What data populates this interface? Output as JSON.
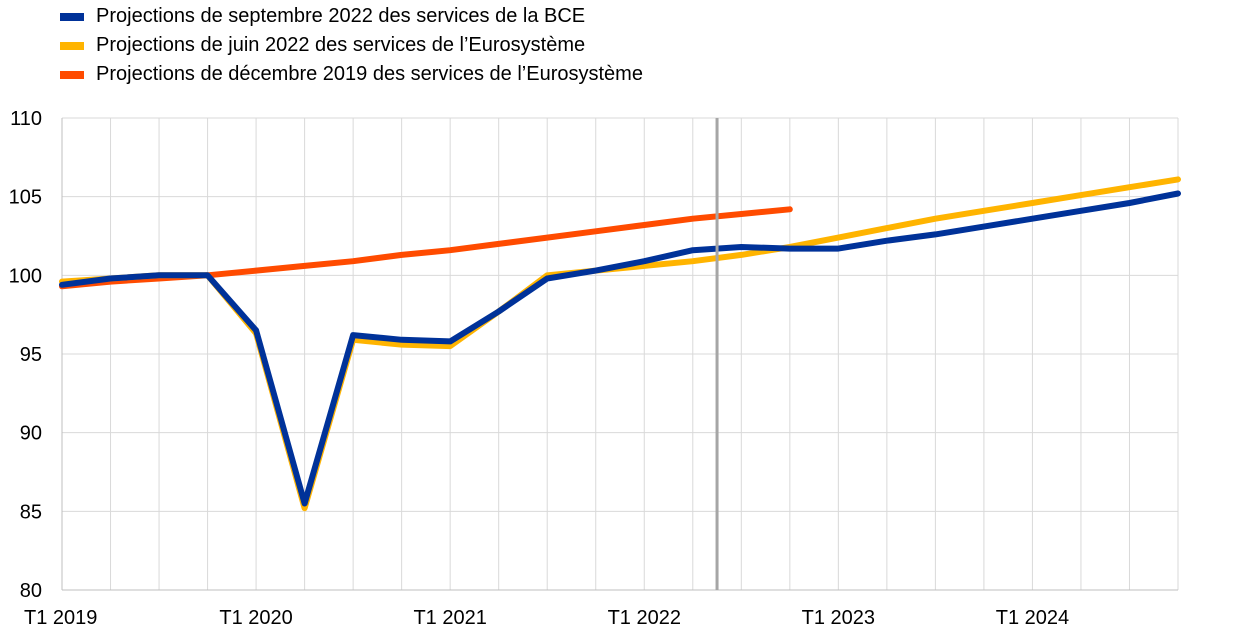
{
  "chart_data": {
    "type": "line",
    "title": "",
    "xlabel": "",
    "ylabel": "",
    "ylim": [
      80,
      110
    ],
    "yticks": [
      80,
      85,
      90,
      95,
      100,
      105,
      110
    ],
    "xlim": [
      0,
      23
    ],
    "xtick_labels": [
      {
        "i": 0,
        "label": "T1 2019"
      },
      {
        "i": 4,
        "label": "T1 2020"
      },
      {
        "i": 8,
        "label": "T1 2021"
      },
      {
        "i": 12,
        "label": "T1 2022"
      },
      {
        "i": 16,
        "label": "T1 2023"
      },
      {
        "i": 20,
        "label": "T1 2024"
      }
    ],
    "categories": [
      "T1 2019",
      "T2 2019",
      "T3 2019",
      "T4 2019",
      "T1 2020",
      "T2 2020",
      "T3 2020",
      "T4 2020",
      "T1 2021",
      "T2 2021",
      "T3 2021",
      "T4 2021",
      "T1 2022",
      "T2 2022",
      "T3 2022",
      "T4 2022",
      "T1 2023",
      "T2 2023",
      "T3 2023",
      "T4 2023",
      "T1 2024",
      "T2 2024",
      "T3 2024",
      "T4 2024"
    ],
    "vertical_line_at": 13.5,
    "vertical_line_color": "#a6a6a6",
    "grid": true,
    "legend_position": "top-left",
    "series": [
      {
        "name": "Projections de décembre 2019 des services de l’Eurosystème",
        "color": "#ff4b00",
        "x": [
          0,
          1,
          2,
          3,
          4,
          5,
          6,
          7,
          8,
          9,
          10,
          11,
          12,
          13,
          14,
          15
        ],
        "values": [
          99.3,
          99.6,
          99.8,
          100.0,
          100.3,
          100.6,
          100.9,
          101.3,
          101.6,
          102.0,
          102.4,
          102.8,
          103.2,
          103.6,
          103.9,
          104.2
        ]
      },
      {
        "name": "Projections de juin 2022 des services de l’Eurosystème",
        "color": "#ffb400",
        "x": [
          0,
          1,
          2,
          3,
          4,
          5,
          6,
          7,
          8,
          9,
          10,
          11,
          12,
          13,
          14,
          15,
          16,
          17,
          18,
          19,
          20,
          21,
          22,
          23
        ],
        "values": [
          99.6,
          99.8,
          100.0,
          100.0,
          96.3,
          85.2,
          95.9,
          95.6,
          95.5,
          97.7,
          100.0,
          100.3,
          100.6,
          100.9,
          101.3,
          101.8,
          102.4,
          103.0,
          103.6,
          104.1,
          104.6,
          105.1,
          105.6,
          106.1
        ]
      },
      {
        "name": "Projections de septembre 2022 des services de la BCE",
        "color": "#003299",
        "x": [
          0,
          1,
          2,
          3,
          4,
          5,
          6,
          7,
          8,
          9,
          10,
          11,
          12,
          13,
          14,
          15,
          16,
          17,
          18,
          19,
          20,
          21,
          22,
          23
        ],
        "values": [
          99.4,
          99.8,
          100.0,
          100.0,
          96.5,
          85.5,
          96.2,
          95.9,
          95.8,
          97.7,
          99.8,
          100.3,
          100.9,
          101.6,
          101.8,
          101.7,
          101.7,
          102.2,
          102.6,
          103.1,
          103.6,
          104.1,
          104.6,
          105.2
        ]
      }
    ]
  },
  "legend": {
    "items": [
      {
        "label": "Projections de septembre 2022 des services de la BCE",
        "color": "#003299"
      },
      {
        "label": "Projections de juin 2022 des services de l’Eurosystème",
        "color": "#ffb400"
      },
      {
        "label": "Projections de décembre 2019 des services de l’Eurosystème",
        "color": "#ff4b00"
      }
    ]
  }
}
